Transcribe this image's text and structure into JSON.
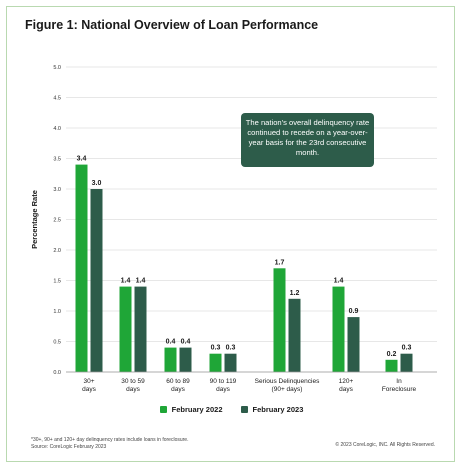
{
  "title": "Figure 1: National Overview of Loan Performance",
  "callout": "The nation's overall delinquency rate continued to recede on a year-over-year basis for the 23rd consecutive month.",
  "footnote_line1": "*30+, 90+ and 120+ day delinquency rates include loans in foreclosure.",
  "footnote_line2": "Source: CoreLogic February 2023",
  "copyright": "© 2023 CoreLogic, INC. All Rights Reserved.",
  "colors": {
    "feb2022": "#1fa637",
    "feb2023": "#2d5c4a",
    "grid": "#d0d0d0",
    "frame": "#b9d9b0"
  },
  "chart_data": {
    "type": "bar",
    "ylabel": "Percentage Rate",
    "ylim": [
      0,
      5.0
    ],
    "yticks": [
      "0.0",
      "0.5",
      "1.0",
      "1.5",
      "2.0",
      "2.5",
      "3.0",
      "3.5",
      "4.0",
      "4.5",
      "5.0"
    ],
    "grid": true,
    "legend_position": "bottom",
    "categories": [
      [
        "30+",
        "days"
      ],
      [
        "30 to 59",
        "days"
      ],
      [
        "60 to 89",
        "days"
      ],
      [
        "90 to 119",
        "days"
      ],
      [
        "Serious Delinquencies",
        "(90+ days)"
      ],
      [
        "120+",
        "days"
      ],
      [
        "In",
        "Foreclosure"
      ]
    ],
    "series": [
      {
        "name": "February 2022",
        "values": [
          3.4,
          1.4,
          0.4,
          0.3,
          1.7,
          1.4,
          0.2
        ],
        "labels": [
          "3.4",
          "1.4",
          "0.4",
          "0.3",
          "1.7",
          "1.4",
          "0.2"
        ]
      },
      {
        "name": "February 2023",
        "values": [
          3.0,
          1.4,
          0.4,
          0.3,
          1.2,
          0.9,
          0.3
        ],
        "labels": [
          "3.0",
          "1.4",
          "0.4",
          "0.3",
          "1.2",
          "0.9",
          "0.3"
        ]
      }
    ]
  }
}
